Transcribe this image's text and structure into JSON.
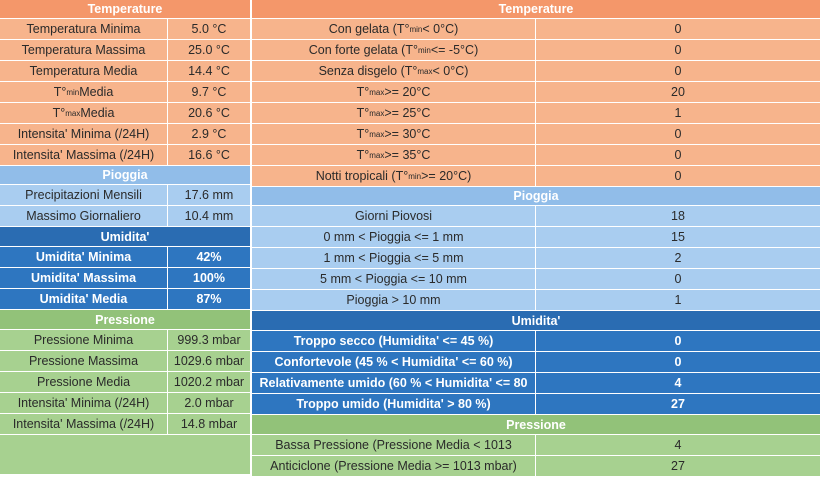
{
  "left": {
    "temp_header": "Temperature",
    "temp_rows": [
      {
        "label": "Temperatura Minima",
        "value": "5.0 °C"
      },
      {
        "label": "Temperatura Massima",
        "value": "25.0 °C"
      },
      {
        "label": "Temperatura Media",
        "value": "14.4 °C"
      },
      {
        "label_pre": "T°",
        "label_sub": "min",
        "label_post": " Media",
        "value": "9.7 °C"
      },
      {
        "label_pre": "T°",
        "label_sub": "max",
        "label_post": " Media",
        "value": "20.6 °C"
      },
      {
        "label": "Intensita' Minima (/24H)",
        "value": "2.9 °C"
      },
      {
        "label": "Intensita' Massima (/24H)",
        "value": "16.6 °C"
      }
    ],
    "rain_header": "Pioggia",
    "rain_rows": [
      {
        "label": "Precipitazioni Mensili",
        "value": "17.6 mm"
      },
      {
        "label": "Massimo Giornaliero",
        "value": "10.4 mm"
      }
    ],
    "hum_header": "Umidita'",
    "hum_rows": [
      {
        "label": "Umidita' Minima",
        "value": "42%"
      },
      {
        "label": "Umidita' Massima",
        "value": "100%"
      },
      {
        "label": "Umidita' Media",
        "value": "87%"
      }
    ],
    "press_header": "Pressione",
    "press_rows": [
      {
        "label": "Pressione Minima",
        "value": "999.3 mbar"
      },
      {
        "label": "Pressione Massima",
        "value": "1029.6 mbar"
      },
      {
        "label": "Pressione Media",
        "value": "1020.2 mbar"
      },
      {
        "label": "Intensita' Minima (/24H)",
        "value": "2.0 mbar"
      },
      {
        "label": "Intensita' Massima (/24H)",
        "value": "14.8 mbar"
      }
    ]
  },
  "right": {
    "temp_header": "Temperature",
    "temp_rows": [
      {
        "pre": "Con gelata (T°",
        "sub": "min",
        "post": " < 0°C)",
        "value": "0"
      },
      {
        "pre": "Con forte gelata (T°",
        "sub": "min",
        "post": " <= -5°C)",
        "value": "0"
      },
      {
        "pre": "Senza disgelo (T°",
        "sub": "max",
        "post": " < 0°C)",
        "value": "0"
      },
      {
        "pre": "T°",
        "sub": "max",
        "post": " >= 20°C",
        "value": "20"
      },
      {
        "pre": "T°",
        "sub": "max",
        "post": " >= 25°C",
        "value": "1"
      },
      {
        "pre": "T°",
        "sub": "max",
        "post": " >= 30°C",
        "value": "0"
      },
      {
        "pre": "T°",
        "sub": "max",
        "post": " >= 35°C",
        "value": "0"
      },
      {
        "pre": "Notti tropicali (T°",
        "sub": "min",
        "post": " >= 20°C)",
        "value": "0"
      }
    ],
    "rain_header": "Pioggia",
    "rain_rows": [
      {
        "label": "Giorni Piovosi",
        "value": "18"
      },
      {
        "label": "0 mm < Pioggia <= 1 mm",
        "value": "15"
      },
      {
        "label": "1 mm < Pioggia <= 5 mm",
        "value": "2"
      },
      {
        "label": "5 mm < Pioggia <= 10 mm",
        "value": "0"
      },
      {
        "label": "Pioggia > 10 mm",
        "value": "1"
      }
    ],
    "hum_header": "Umidita'",
    "hum_rows": [
      {
        "label": "Troppo secco (Humidita' <= 45 %)",
        "value": "0"
      },
      {
        "label": "Confortevole (45 % < Humidita' <= 60 %)",
        "value": "0"
      },
      {
        "label": "Relativamente umido (60 % < Humidita' <= 80",
        "value": "4"
      },
      {
        "label": "Troppo umido (Humidita' > 80 %)",
        "value": "27"
      }
    ],
    "press_header": "Pressione",
    "press_rows": [
      {
        "label": "Bassa Pressione (Pressione Media < 1013",
        "value": "4"
      },
      {
        "label": "Anticiclone (Pressione Media >= 1013 mbar)",
        "value": "27"
      }
    ]
  }
}
